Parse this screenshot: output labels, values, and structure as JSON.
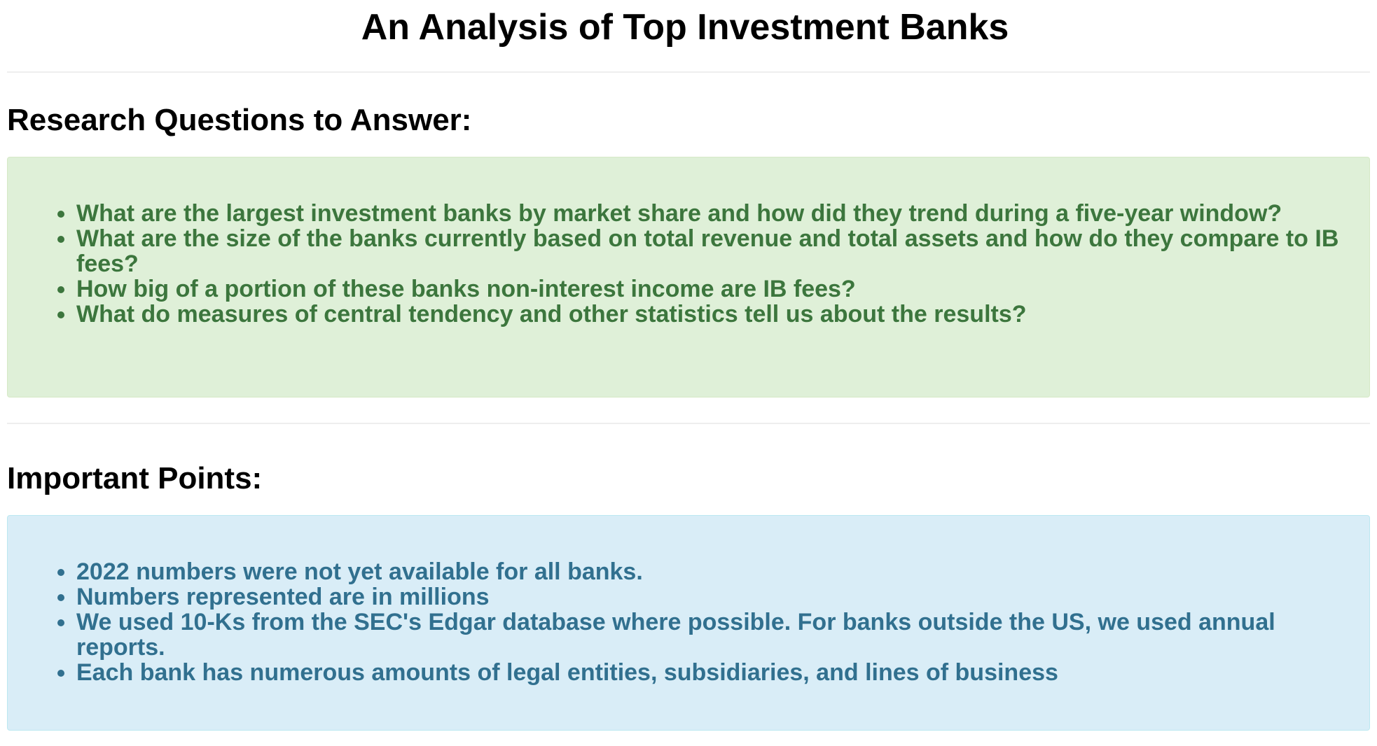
{
  "page": {
    "title": "An Analysis of Top Investment Banks"
  },
  "research": {
    "heading": "Research Questions to Answer:",
    "items": [
      "What are the largest investment banks by market share and how did they trend during a five-year window?",
      "What are the size of the banks currently based on total revenue and total assets and how do they compare to IB fees?",
      "How big of a portion of these banks non-interest income are IB fees?",
      "What do measures of central tendency and other statistics tell us about the results?"
    ]
  },
  "points": {
    "heading": "Important Points:",
    "items": [
      "2022 numbers were not yet available for all banks.",
      "Numbers represented are in millions",
      "We used 10-Ks from the SEC's Edgar database where possible. For banks outside the US, we used annual reports.",
      "Each bank has numerous amounts of legal entities, subsidiaries, and lines of business"
    ]
  },
  "colors": {
    "success_bg": "#dff0d8",
    "success_text": "#3c763d",
    "info_bg": "#d9edf7",
    "info_text": "#31708f"
  }
}
